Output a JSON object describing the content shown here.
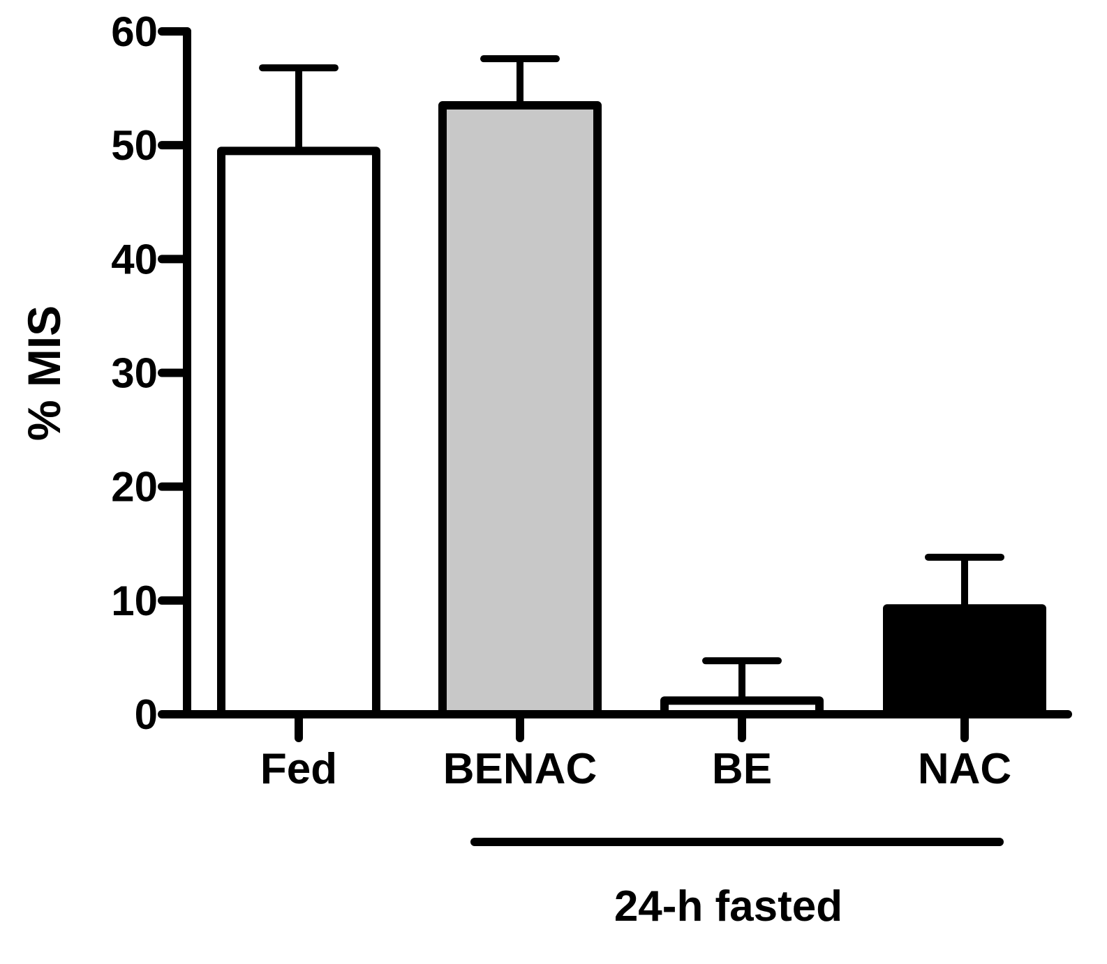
{
  "chart_data": {
    "type": "bar",
    "categories": [
      "Fed",
      "BENAC",
      "BE",
      "NAC"
    ],
    "values": [
      49.5,
      53.5,
      1.2,
      9.3
    ],
    "errors": [
      7.3,
      4.1,
      3.5,
      4.5
    ],
    "fills": [
      "#ffffff",
      "#c8c8c8",
      "#ffffff",
      "#000000"
    ],
    "ylabel": "% MIS",
    "xlabel": "",
    "ylim": [
      0,
      60
    ],
    "yticks": [
      "0",
      "10",
      "20",
      "30",
      "40",
      "50",
      "60"
    ],
    "group_label": "24-h fasted",
    "group_categories": [
      "BENAC",
      "BE",
      "NAC"
    ],
    "grid": false,
    "legend": "none"
  },
  "colors": {
    "axis": "#000000"
  }
}
